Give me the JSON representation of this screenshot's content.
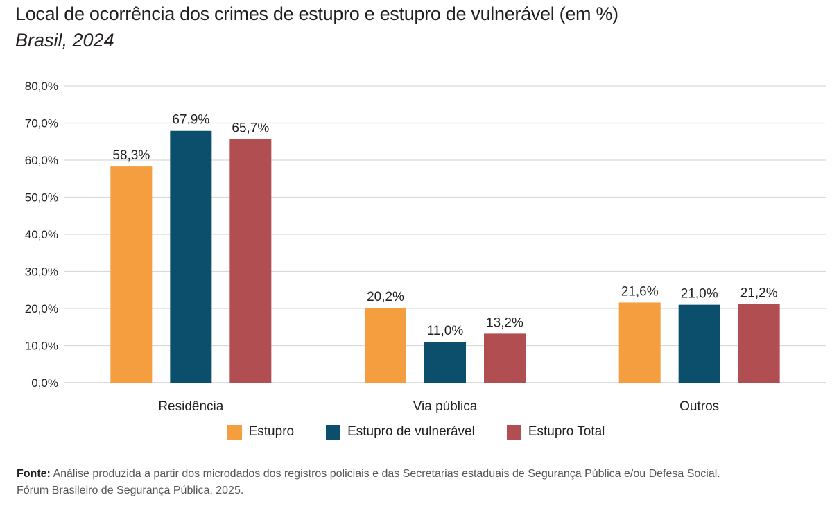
{
  "title": "Local de ocorrência dos crimes de estupro e estupro de vulnerável (em %)",
  "subtitle": "Brasil, 2024",
  "chart_data": {
    "type": "bar",
    "categories": [
      "Residência",
      "Via pública",
      "Outros"
    ],
    "series": [
      {
        "name": "Estupro",
        "color": "#f59e3f",
        "values": [
          58.3,
          20.2,
          21.6
        ],
        "labels": [
          "58,3%",
          "20,2%",
          "21,6%"
        ]
      },
      {
        "name": "Estupro de vulnerável",
        "color": "#0b4f6c",
        "values": [
          67.9,
          11.0,
          21.0
        ],
        "labels": [
          "67,9%",
          "11,0%",
          "21,0%"
        ]
      },
      {
        "name": "Estupro Total",
        "color": "#b04e52",
        "values": [
          65.7,
          13.2,
          21.2
        ],
        "labels": [
          "65,7%",
          "13,2%",
          "21,2%"
        ]
      }
    ],
    "ylim": [
      0,
      80
    ],
    "yticks": [
      0,
      10,
      20,
      30,
      40,
      50,
      60,
      70,
      80
    ],
    "ytick_labels": [
      "0,0%",
      "10,0%",
      "20,0%",
      "30,0%",
      "40,0%",
      "50,0%",
      "60,0%",
      "70,0%",
      "80,0%"
    ],
    "grid": true,
    "legend_position": "bottom-center"
  },
  "source": {
    "label": "Fonte:",
    "text": "Análise produzida a partir dos microdados dos registros policiais e das Secretarias estaduais de Segurança Pública e/ou Defesa Social.",
    "line2": "Fórum Brasileiro de Segurança Pública, 2025."
  }
}
